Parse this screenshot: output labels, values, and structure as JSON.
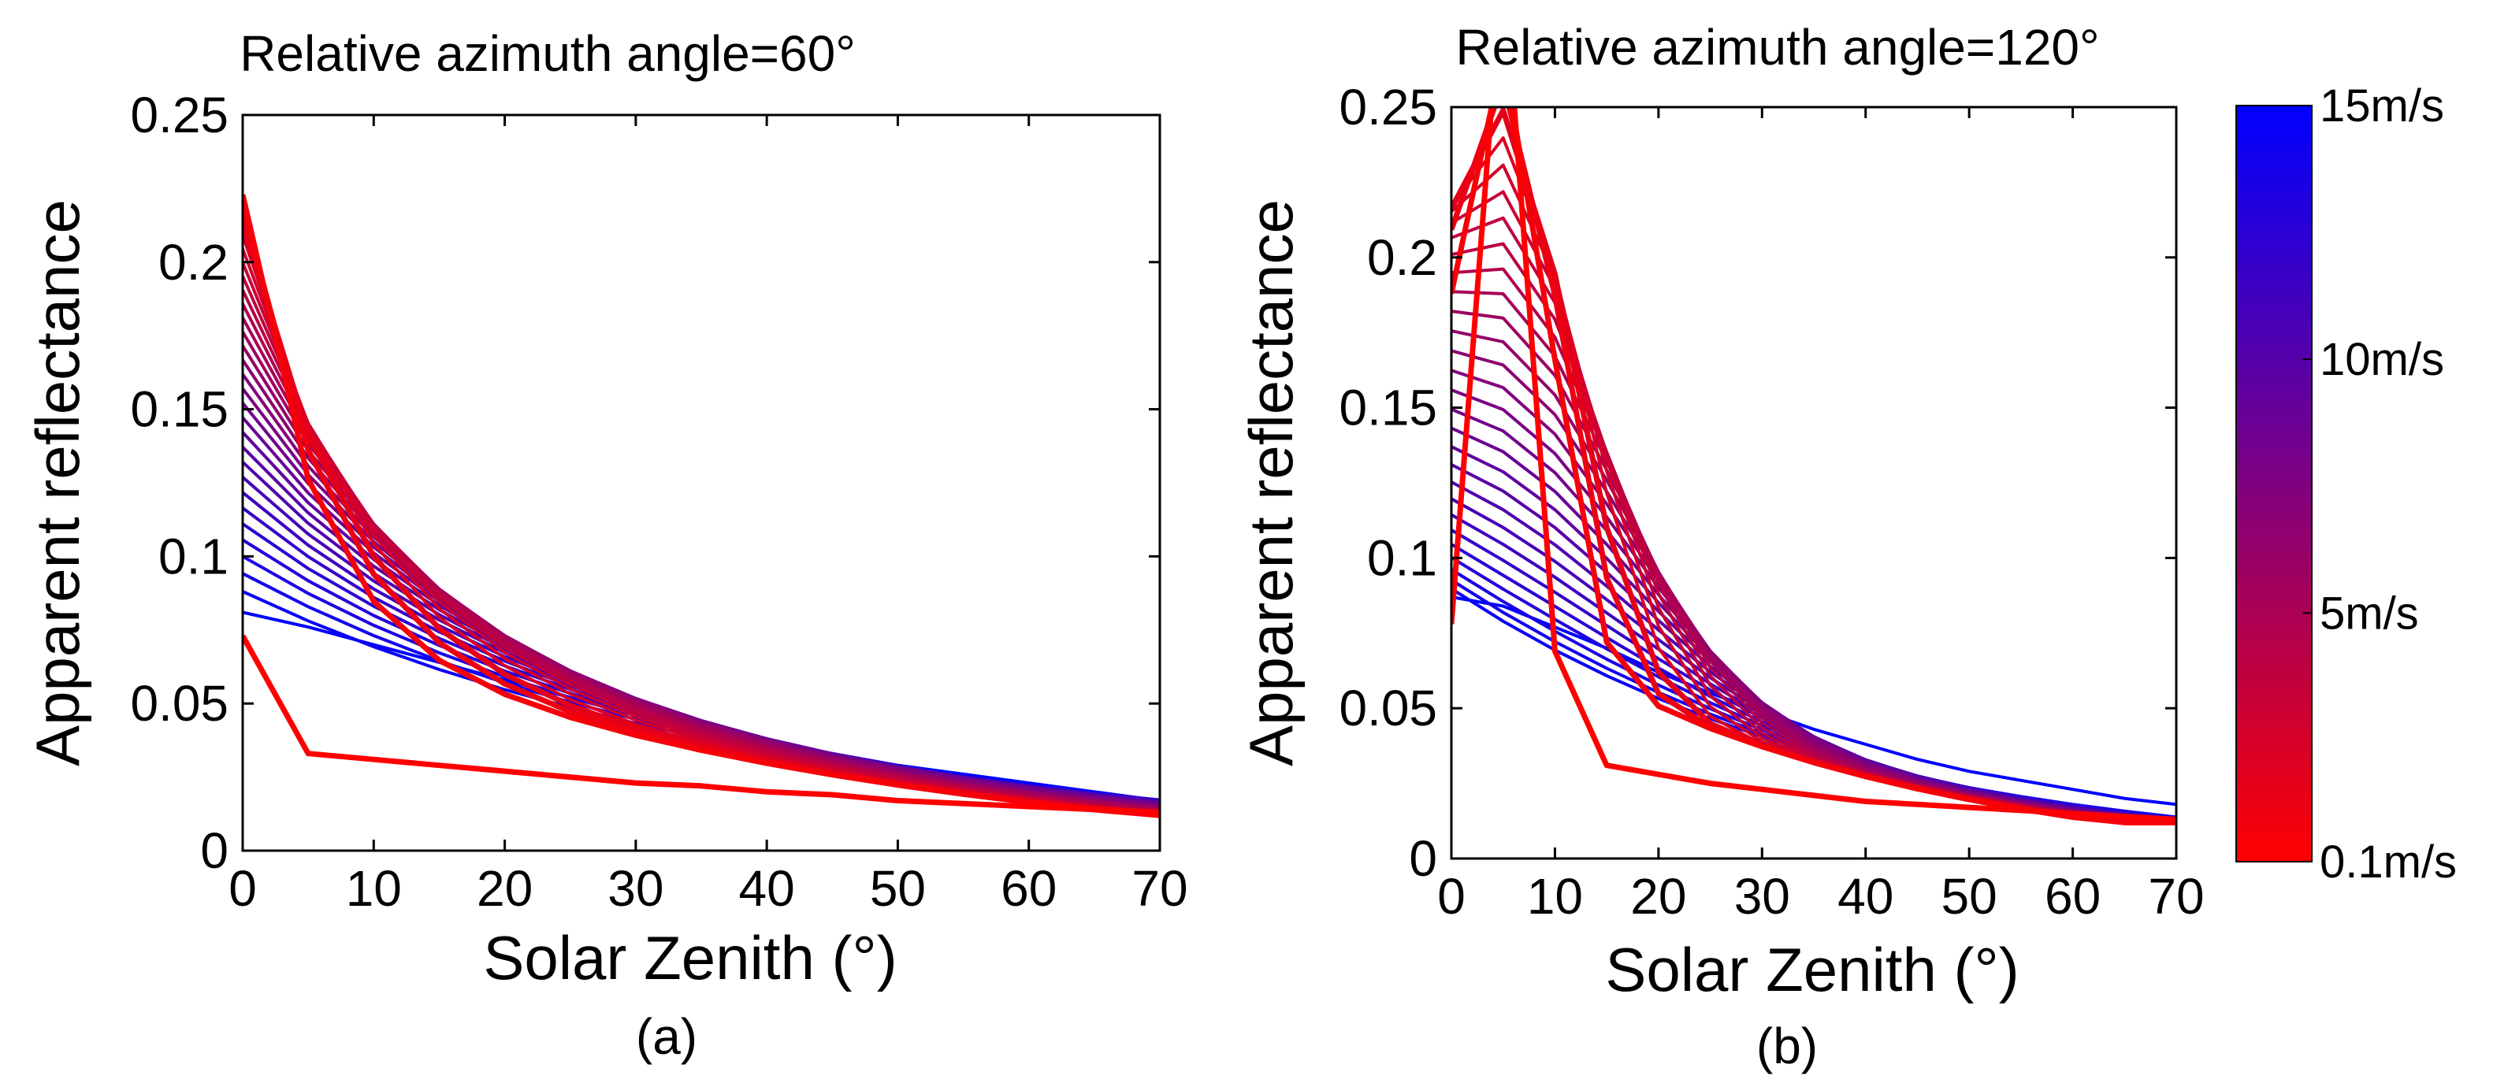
{
  "chart_data": [
    {
      "type": "line",
      "title": "Relative azimuth angle=60°",
      "xlabel": "Solar Zenith  (°)",
      "ylabel": "Apparent reflectance",
      "caption": "(a)",
      "xlim": [
        0,
        70
      ],
      "ylim": [
        0,
        0.25
      ],
      "xticks": [
        "0",
        "10",
        "20",
        "30",
        "40",
        "50",
        "60",
        "70"
      ],
      "yticks": [
        "0",
        "0.05",
        "0.1",
        "0.15",
        "0.2",
        "0.25"
      ],
      "grid": false,
      "legend": "none",
      "x": [
        0,
        5,
        10,
        15,
        20,
        25,
        30,
        35,
        40,
        45,
        50,
        55,
        60,
        65,
        70
      ],
      "series_count": 30,
      "wind_speed_min": 0.1,
      "wind_speed_max": 15,
      "color_low": "#ff0000",
      "color_high": "#0000ff",
      "series_samples": [
        {
          "wind_speed": 0.1,
          "values": [
            0.073,
            0.033,
            0.031,
            0.029,
            0.027,
            0.025,
            0.023,
            0.022,
            0.02,
            0.019,
            0.017,
            0.016,
            0.015,
            0.014,
            0.013
          ]
        },
        {
          "wind_speed": 0.6,
          "values": [
            0.193,
            0.117,
            0.049,
            0.041,
            0.036,
            0.031,
            0.027,
            0.024,
            0.021,
            0.019,
            0.017,
            0.016,
            0.015,
            0.014,
            0.013
          ]
        },
        {
          "wind_speed": 15,
          "values": [
            0.081,
            0.076,
            0.07,
            0.064,
            0.058,
            0.052,
            0.047,
            0.042,
            0.037,
            0.033,
            0.029,
            0.026,
            0.023,
            0.02,
            0.017
          ]
        }
      ]
    },
    {
      "type": "line",
      "title": "Relative azimuth angle=120°",
      "xlabel": "Solar Zenith  (°)",
      "ylabel": "Apparent reflectance",
      "caption": "(b)",
      "xlim": [
        0,
        70
      ],
      "ylim": [
        0,
        0.25
      ],
      "xticks": [
        "0",
        "10",
        "20",
        "30",
        "40",
        "50",
        "60",
        "70"
      ],
      "yticks": [
        "0",
        "0.05",
        "0.1",
        "0.15",
        "0.2",
        "0.25"
      ],
      "grid": false,
      "legend": "none",
      "x": [
        0,
        5,
        10,
        15,
        20,
        25,
        30,
        35,
        40,
        45,
        50,
        55,
        60,
        65,
        70
      ],
      "series_count": 30,
      "wind_speed_min": 0.1,
      "wind_speed_max": 15,
      "color_low": "#ff0000",
      "color_high": "#0000ff",
      "series_samples": [
        {
          "wind_speed": 0.1,
          "values": [
            0.078,
            0.3,
            0.069,
            0.031,
            0.028,
            0.025,
            0.023,
            0.021,
            0.019,
            0.018,
            0.017,
            0.016,
            0.015,
            0.014,
            0.013
          ]
        },
        {
          "wind_speed": 1.0,
          "values": [
            0.2,
            0.223,
            0.18,
            0.05,
            0.037,
            0.03,
            0.025,
            0.022,
            0.02,
            0.018,
            0.017,
            0.016,
            0.015,
            0.014,
            0.013
          ]
        },
        {
          "wind_speed": 15,
          "values": [
            0.087,
            0.084,
            0.077,
            0.07,
            0.062,
            0.055,
            0.049,
            0.043,
            0.038,
            0.033,
            0.029,
            0.026,
            0.023,
            0.02,
            0.018
          ]
        }
      ]
    }
  ],
  "colorbar": {
    "labels": [
      "15m/s",
      "10m/s",
      "5m/s",
      "0.1m/s"
    ],
    "label_values": [
      15,
      10,
      5,
      0.1
    ],
    "range": [
      0.1,
      15
    ],
    "color_low": "#ff0000",
    "color_high": "#0000ff"
  }
}
